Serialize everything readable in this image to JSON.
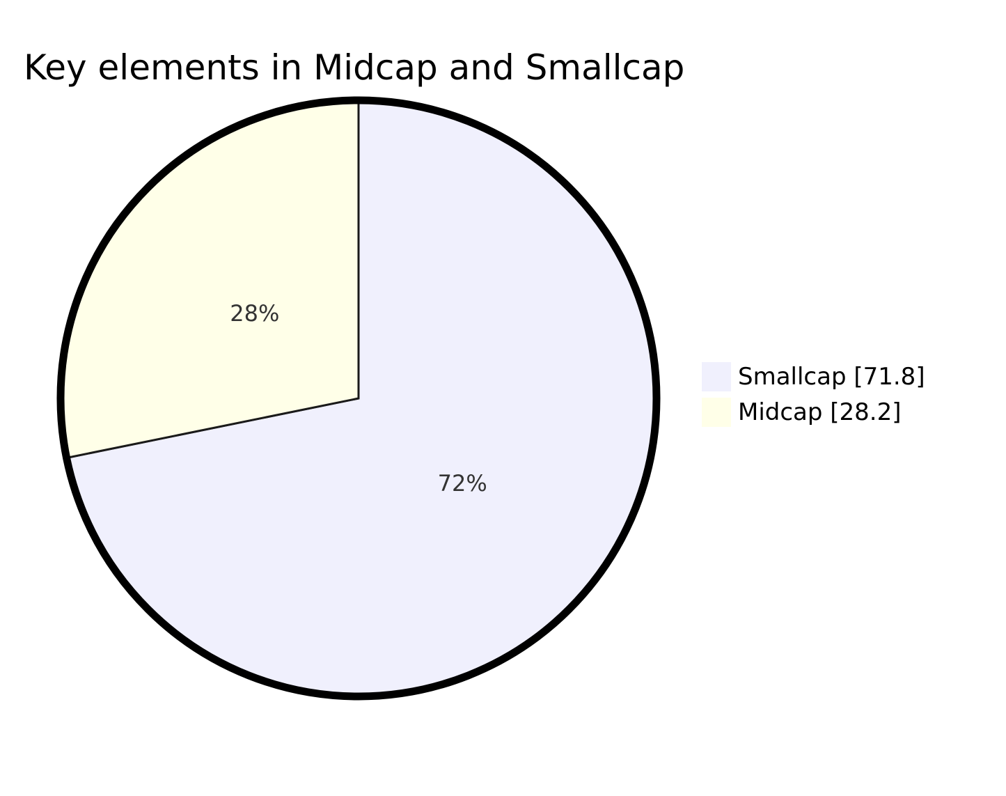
{
  "chart_data": {
    "type": "pie",
    "title": "Key elements in Midcap and Smallcap",
    "slices": [
      {
        "label": "Smallcap",
        "value": 71.8,
        "percent_label": "72%",
        "legend_label": "Smallcap [71.8]",
        "color": "#f0f0fd"
      },
      {
        "label": "Midcap",
        "value": 28.2,
        "percent_label": "28%",
        "legend_label": "Midcap [28.2]",
        "color": "#ffffe8"
      }
    ],
    "legend_position": "right",
    "outline_color": "#000000",
    "divider_color": "#1a1a1a"
  }
}
